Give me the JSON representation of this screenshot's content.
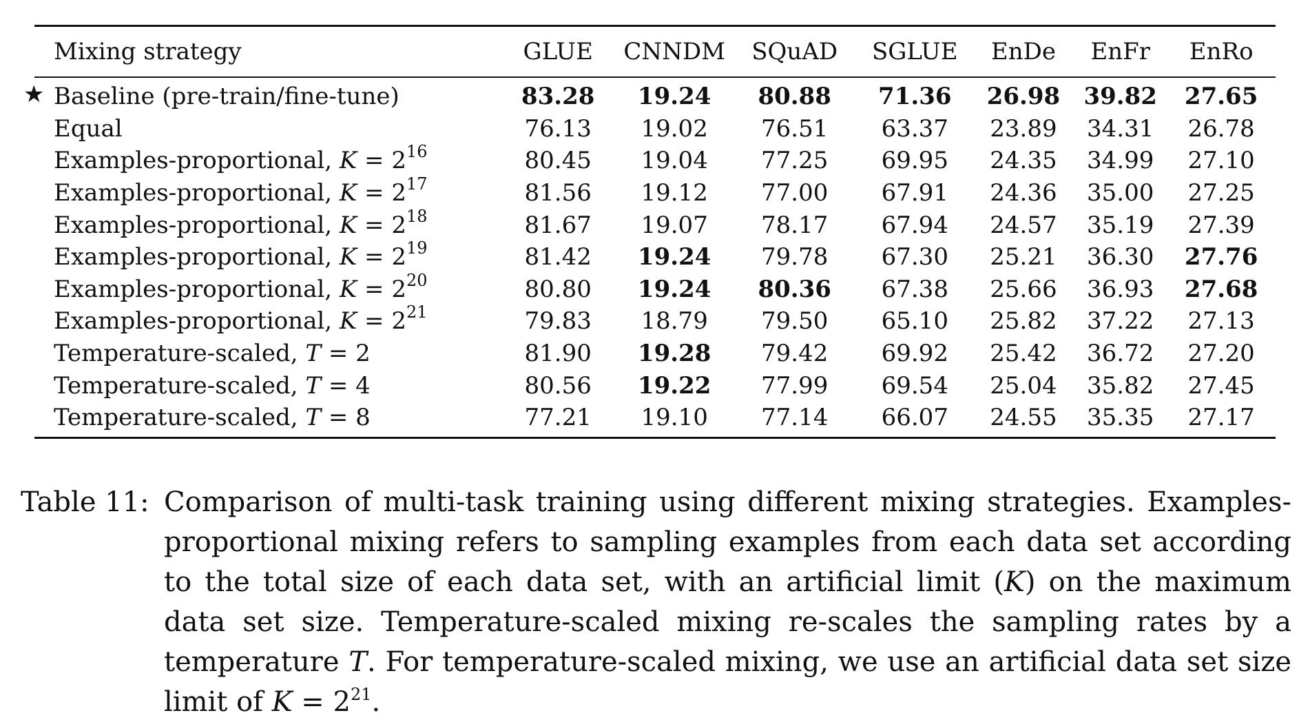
{
  "table": {
    "headers": [
      "Mixing strategy",
      "GLUE",
      "CNNDM",
      "SQuAD",
      "SGLUE",
      "EnDe",
      "EnFr",
      "EnRo"
    ],
    "rows": [
      {
        "star": "★",
        "label": "Baseline (pre-train/fine-tune)",
        "var": "",
        "eq": "",
        "base": "",
        "exp": "",
        "values": [
          "83.28",
          "19.24",
          "80.88",
          "71.36",
          "26.98",
          "39.82",
          "27.65"
        ],
        "bold": [
          true,
          true,
          true,
          true,
          true,
          true,
          true
        ]
      },
      {
        "star": "",
        "label": "Equal",
        "var": "",
        "eq": "",
        "base": "",
        "exp": "",
        "values": [
          "76.13",
          "19.02",
          "76.51",
          "63.37",
          "23.89",
          "34.31",
          "26.78"
        ],
        "bold": [
          false,
          false,
          false,
          false,
          false,
          false,
          false
        ]
      },
      {
        "star": "",
        "label": "Examples-proportional, ",
        "var": "K",
        "eq": " = ",
        "base": "2",
        "exp": "16",
        "values": [
          "80.45",
          "19.04",
          "77.25",
          "69.95",
          "24.35",
          "34.99",
          "27.10"
        ],
        "bold": [
          false,
          false,
          false,
          false,
          false,
          false,
          false
        ]
      },
      {
        "star": "",
        "label": "Examples-proportional, ",
        "var": "K",
        "eq": " = ",
        "base": "2",
        "exp": "17",
        "values": [
          "81.56",
          "19.12",
          "77.00",
          "67.91",
          "24.36",
          "35.00",
          "27.25"
        ],
        "bold": [
          false,
          false,
          false,
          false,
          false,
          false,
          false
        ]
      },
      {
        "star": "",
        "label": "Examples-proportional, ",
        "var": "K",
        "eq": " = ",
        "base": "2",
        "exp": "18",
        "values": [
          "81.67",
          "19.07",
          "78.17",
          "67.94",
          "24.57",
          "35.19",
          "27.39"
        ],
        "bold": [
          false,
          false,
          false,
          false,
          false,
          false,
          false
        ]
      },
      {
        "star": "",
        "label": "Examples-proportional, ",
        "var": "K",
        "eq": " = ",
        "base": "2",
        "exp": "19",
        "values": [
          "81.42",
          "19.24",
          "79.78",
          "67.30",
          "25.21",
          "36.30",
          "27.76"
        ],
        "bold": [
          false,
          true,
          false,
          false,
          false,
          false,
          true
        ]
      },
      {
        "star": "",
        "label": "Examples-proportional, ",
        "var": "K",
        "eq": " = ",
        "base": "2",
        "exp": "20",
        "values": [
          "80.80",
          "19.24",
          "80.36",
          "67.38",
          "25.66",
          "36.93",
          "27.68"
        ],
        "bold": [
          false,
          true,
          true,
          false,
          false,
          false,
          true
        ]
      },
      {
        "star": "",
        "label": "Examples-proportional, ",
        "var": "K",
        "eq": " = ",
        "base": "2",
        "exp": "21",
        "values": [
          "79.83",
          "18.79",
          "79.50",
          "65.10",
          "25.82",
          "37.22",
          "27.13"
        ],
        "bold": [
          false,
          false,
          false,
          false,
          false,
          false,
          false
        ]
      },
      {
        "star": "",
        "label": "Temperature-scaled, ",
        "var": "T",
        "eq": " = ",
        "base": "2",
        "exp": "",
        "values": [
          "81.90",
          "19.28",
          "79.42",
          "69.92",
          "25.42",
          "36.72",
          "27.20"
        ],
        "bold": [
          false,
          true,
          false,
          false,
          false,
          false,
          false
        ]
      },
      {
        "star": "",
        "label": "Temperature-scaled, ",
        "var": "T",
        "eq": " = ",
        "base": "4",
        "exp": "",
        "values": [
          "80.56",
          "19.22",
          "77.99",
          "69.54",
          "25.04",
          "35.82",
          "27.45"
        ],
        "bold": [
          false,
          true,
          false,
          false,
          false,
          false,
          false
        ]
      },
      {
        "star": "",
        "label": "Temperature-scaled, ",
        "var": "T",
        "eq": " = ",
        "base": "8",
        "exp": "",
        "values": [
          "77.21",
          "19.10",
          "77.14",
          "66.07",
          "24.55",
          "35.35",
          "27.17"
        ],
        "bold": [
          false,
          false,
          false,
          false,
          false,
          false,
          false
        ]
      }
    ]
  },
  "caption": {
    "label": "Table 11:",
    "text_1": "Comparison of multi-task training using different mixing strategies. Examples-proportional mixing refers to sampling examples from each data set according to the total size of each data set, with an artificial limit (",
    "var_k": "K",
    "text_2": ") on the maximum data set size. Temperature-scaled mixing re-scales the sampling rates by a temperature ",
    "var_t": "T",
    "text_3": ". For temperature-scaled mixing, we use an artificial data set size limit of ",
    "var_k2": "K",
    "eq": " = ",
    "base": "2",
    "exp": "21",
    "text_4": "."
  }
}
